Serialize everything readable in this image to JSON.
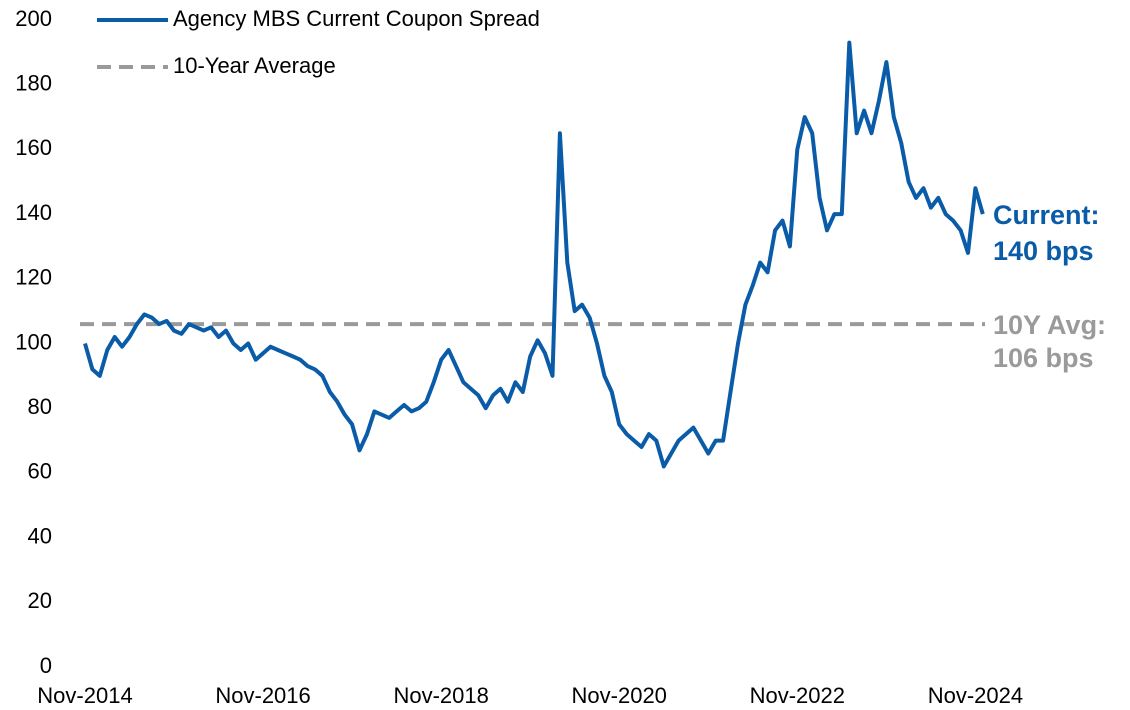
{
  "chart_data": {
    "type": "line",
    "categories": [
      "Nov-2014",
      null,
      null,
      null,
      null,
      null,
      null,
      null,
      null,
      null,
      null,
      null,
      null,
      null,
      null,
      null,
      null,
      null,
      null,
      null,
      null,
      null,
      null,
      null,
      "Nov-2016",
      null,
      null,
      null,
      null,
      null,
      null,
      null,
      null,
      null,
      null,
      null,
      null,
      null,
      null,
      null,
      null,
      null,
      null,
      null,
      null,
      null,
      null,
      null,
      "Nov-2018",
      null,
      null,
      null,
      null,
      null,
      null,
      null,
      null,
      null,
      null,
      null,
      null,
      null,
      null,
      null,
      null,
      null,
      null,
      null,
      null,
      null,
      null,
      null,
      "Nov-2020",
      null,
      null,
      null,
      null,
      null,
      null,
      null,
      null,
      null,
      null,
      null,
      null,
      null,
      null,
      null,
      null,
      null,
      null,
      null,
      null,
      null,
      null,
      null,
      "Nov-2022",
      null,
      null,
      null,
      null,
      null,
      null,
      null,
      null,
      null,
      null,
      null,
      null,
      null,
      null,
      null,
      null,
      null,
      null,
      null,
      null,
      null,
      null,
      null,
      "Nov-2024",
      null
    ],
    "series": [
      {
        "name": "Agency MBS Current Coupon Spread",
        "color": "#0a5ca8",
        "values": [
          100,
          92,
          90,
          98,
          102,
          99,
          102,
          106,
          109,
          108,
          106,
          107,
          104,
          103,
          106,
          105,
          104,
          105,
          102,
          104,
          100,
          98,
          100,
          95,
          97,
          99,
          98,
          97,
          96,
          95,
          93,
          92,
          90,
          85,
          82,
          78,
          75,
          67,
          72,
          79,
          78,
          77,
          79,
          81,
          79,
          80,
          82,
          88,
          95,
          98,
          93,
          88,
          86,
          84,
          80,
          84,
          86,
          82,
          88,
          85,
          96,
          101,
          97,
          90,
          165,
          125,
          110,
          112,
          108,
          100,
          90,
          85,
          75,
          72,
          70,
          68,
          72,
          70,
          62,
          66,
          70,
          72,
          74,
          70,
          66,
          70,
          70,
          85,
          100,
          112,
          118,
          125,
          122,
          135,
          138,
          130,
          160,
          170,
          165,
          145,
          135,
          140,
          140,
          193,
          165,
          172,
          165,
          175,
          187,
          170,
          162,
          150,
          145,
          148,
          142,
          145,
          140,
          138,
          135,
          128,
          148,
          140
        ]
      }
    ],
    "reference_line": {
      "name": "10-Year Average",
      "value": 106,
      "color": "#9a9a9a"
    },
    "annotations": [
      {
        "lines": [
          "Current:",
          "140 bps"
        ],
        "color": "#0a5ca8"
      },
      {
        "lines": [
          "10Y Avg:",
          "106 bps"
        ],
        "color": "#9a9a9a"
      }
    ],
    "ylim": [
      0,
      200
    ],
    "yticks": [
      0,
      20,
      40,
      60,
      80,
      100,
      120,
      140,
      160,
      180,
      200
    ],
    "grid": false
  }
}
